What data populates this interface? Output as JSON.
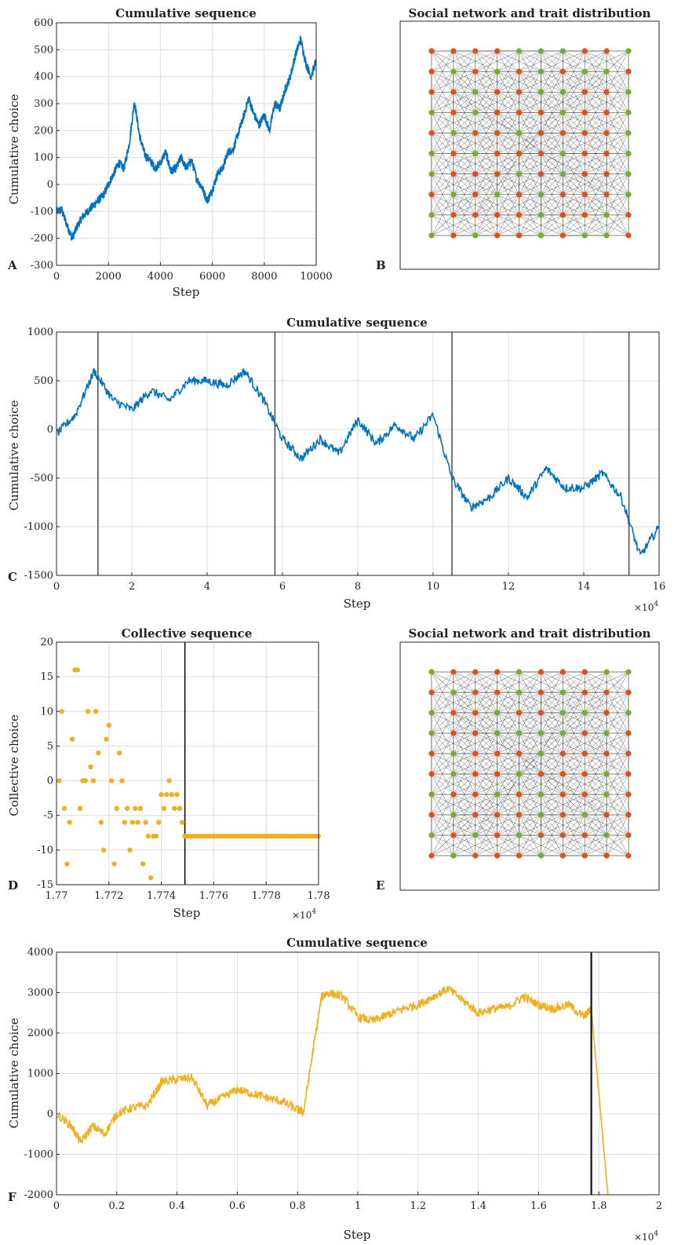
{
  "figure": {
    "panels": {
      "A": {
        "label": "A",
        "title": "Cumulative sequence",
        "xlabel": "Step",
        "ylabel": "Cumulative choice"
      },
      "B": {
        "label": "B",
        "title": "Social network and trait distribution"
      },
      "C": {
        "label": "C",
        "title": "Cumulative sequence",
        "xlabel": "Step",
        "ylabel": "Cumulative choice",
        "exponent": "×10",
        "exponent_power": "4"
      },
      "D": {
        "label": "D",
        "title": "Collective sequence",
        "xlabel": "Step",
        "ylabel": "Collective choice",
        "exponent": "×10",
        "exponent_power": "4"
      },
      "E": {
        "label": "E",
        "title": "Social network and trait distribution"
      },
      "F": {
        "label": "F",
        "title": "Cumulative sequence",
        "xlabel": "Step",
        "ylabel": "Cumulative choice",
        "exponent": "×10",
        "exponent_power": "4"
      }
    }
  },
  "colors": {
    "blue": "#0072BD",
    "yellow": "#EDB120",
    "orange_node": "#D95319",
    "green_node": "#77AC30",
    "vline": "#555555",
    "grid": "#dddddd"
  },
  "chart_data": [
    {
      "panel": "A",
      "type": "line",
      "title": "Cumulative sequence",
      "xlabel": "Step",
      "ylabel": "Cumulative choice",
      "xlim": [
        0,
        10000
      ],
      "ylim": [
        -300,
        600
      ],
      "grid": true,
      "xticks": [
        "0",
        "2000",
        "4000",
        "6000",
        "8000",
        "10000"
      ],
      "yticks": [
        "-300",
        "-200",
        "-100",
        "0",
        "100",
        "200",
        "300",
        "400",
        "500",
        "600"
      ],
      "color": "#0072BD",
      "series": [
        {
          "x": [
            0,
            200,
            400,
            600,
            800,
            1000,
            1200,
            1400,
            1600,
            1800,
            2000,
            2200,
            2400,
            2600,
            2800,
            3000,
            3200,
            3400,
            3600,
            3800,
            4000,
            4200,
            4400,
            4600,
            4800,
            5000,
            5200,
            5400,
            5600,
            5800,
            6000,
            6200,
            6400,
            6600,
            6800,
            7000,
            7200,
            7400,
            7600,
            7800,
            8000,
            8200,
            8400,
            8600,
            8800,
            9000,
            9200,
            9400,
            9600,
            9800,
            10000
          ],
          "y": [
            -100,
            -95,
            -150,
            -200,
            -155,
            -120,
            -100,
            -80,
            -60,
            -40,
            0,
            40,
            80,
            60,
            150,
            310,
            180,
            110,
            90,
            60,
            80,
            120,
            50,
            60,
            100,
            60,
            90,
            20,
            -10,
            -60,
            -20,
            40,
            60,
            120,
            130,
            190,
            250,
            320,
            260,
            220,
            260,
            200,
            300,
            280,
            350,
            400,
            480,
            540,
            450,
            400,
            460
          ]
        }
      ]
    },
    {
      "panel": "B",
      "type": "network",
      "title": "Social network and trait distribution",
      "grid_size": [
        10,
        10
      ],
      "node_traits": [
        "OOOOGGGOOG",
        "OGOGOGOGGO",
        "OOGOOGGOOG",
        "GOGOOOGOOG",
        "OGOOGOOOOG",
        "GOGOOOGOOG",
        "GOOOGOGOOG",
        "OGOGOGOOOG",
        "GOOOOGOOGO",
        "GOGOOGOGGO"
      ]
    },
    {
      "panel": "C",
      "type": "line",
      "title": "Cumulative sequence",
      "xlabel": "Step",
      "ylabel": "Cumulative choice",
      "xlim": [
        0,
        16
      ],
      "ylim": [
        -1500,
        1000
      ],
      "x_multiplier": "×10^4",
      "grid": true,
      "xticks": [
        "0",
        "2",
        "4",
        "6",
        "8",
        "10",
        "12",
        "14",
        "16"
      ],
      "yticks": [
        "-1500",
        "-1000",
        "-500",
        "0",
        "500",
        "1000"
      ],
      "vlines": [
        1.1,
        5.8,
        10.5,
        15.2
      ],
      "color": "#0072BD",
      "series": [
        {
          "x": [
            0,
            0.5,
            1,
            1.5,
            2,
            2.5,
            3,
            3.5,
            4,
            4.5,
            5,
            5.5,
            6,
            6.5,
            7,
            7.5,
            8,
            8.5,
            9,
            9.5,
            10,
            10.5,
            11,
            11.5,
            12,
            12.5,
            13,
            13.5,
            14,
            14.5,
            15,
            15.5,
            16
          ],
          "y": [
            -50,
            150,
            600,
            300,
            200,
            400,
            300,
            500,
            500,
            450,
            600,
            300,
            -100,
            -300,
            -100,
            -250,
            100,
            -150,
            50,
            -100,
            150,
            -500,
            -800,
            -700,
            -500,
            -700,
            -400,
            -600,
            -600,
            -450,
            -700,
            -1300,
            -1000
          ]
        }
      ]
    },
    {
      "panel": "D",
      "type": "scatter",
      "title": "Collective sequence",
      "xlabel": "Step",
      "ylabel": "Collective choice",
      "xlim": [
        1.77,
        1.78
      ],
      "ylim": [
        -15,
        20
      ],
      "x_multiplier": "×10^4",
      "grid": true,
      "xticks": [
        "1.77",
        "1.772",
        "1.774",
        "1.776",
        "1.778",
        "1.78"
      ],
      "yticks": [
        "-15",
        "-10",
        "-5",
        "0",
        "5",
        "10",
        "15",
        "20"
      ],
      "vlines": [
        1.7749
      ],
      "color": "#EDB120",
      "points_before_line": [
        [
          1.7701,
          0
        ],
        [
          1.7702,
          10
        ],
        [
          1.7703,
          -4
        ],
        [
          1.7704,
          -12
        ],
        [
          1.7705,
          -6
        ],
        [
          1.7706,
          6
        ],
        [
          1.7707,
          16
        ],
        [
          1.7708,
          16
        ],
        [
          1.7709,
          -4
        ],
        [
          1.771,
          0
        ],
        [
          1.7711,
          0
        ],
        [
          1.7712,
          10
        ],
        [
          1.7713,
          2
        ],
        [
          1.7714,
          0
        ],
        [
          1.7715,
          10
        ],
        [
          1.7716,
          4
        ],
        [
          1.7717,
          -6
        ],
        [
          1.7718,
          -10
        ],
        [
          1.7719,
          6
        ],
        [
          1.772,
          8
        ],
        [
          1.7721,
          0
        ],
        [
          1.7722,
          -12
        ],
        [
          1.7723,
          -4
        ],
        [
          1.7724,
          4
        ],
        [
          1.7725,
          0
        ],
        [
          1.7726,
          -6
        ],
        [
          1.7727,
          -4
        ],
        [
          1.7728,
          -10
        ],
        [
          1.7729,
          -6
        ],
        [
          1.773,
          -4
        ],
        [
          1.7731,
          -6
        ],
        [
          1.7732,
          -4
        ],
        [
          1.7733,
          -12
        ],
        [
          1.7734,
          -6
        ],
        [
          1.7735,
          -8
        ],
        [
          1.7736,
          -14
        ],
        [
          1.7737,
          -8
        ],
        [
          1.7738,
          -8
        ],
        [
          1.7739,
          -6
        ],
        [
          1.774,
          -2
        ],
        [
          1.7741,
          -4
        ],
        [
          1.7742,
          -2
        ],
        [
          1.7743,
          0
        ],
        [
          1.7744,
          -2
        ],
        [
          1.7745,
          -4
        ],
        [
          1.7746,
          -2
        ],
        [
          1.7747,
          -4
        ],
        [
          1.7748,
          -6
        ]
      ],
      "steady_value": -8,
      "steady_from": 1.7749,
      "steady_to": 1.78
    },
    {
      "panel": "E",
      "type": "network",
      "title": "Social network and trait distribution",
      "grid_size": [
        10,
        10
      ],
      "node_traits": [
        "GOOOGOOOGG",
        "OGOOGOGOOO",
        "GOOGOOGGOG",
        "GOOGGGGOGO",
        "OGOOOGOOOO",
        "OGOOGOOOGO",
        "GOOGOGOOGO",
        "OGOOOGOGOO",
        "GOGOGOOOGO",
        "OGOOOGOOOO"
      ]
    },
    {
      "panel": "F",
      "type": "line",
      "title": "Cumulative sequence",
      "xlabel": "Step",
      "ylabel": "Cumulative choice",
      "xlim": [
        0,
        2
      ],
      "ylim": [
        -2000,
        4000
      ],
      "x_multiplier": "×10^4",
      "grid": true,
      "xticks": [
        "0",
        "0.2",
        "0.4",
        "0.6",
        "0.8",
        "1",
        "1.2",
        "1.4",
        "1.6",
        "1.8",
        "2"
      ],
      "yticks": [
        "-2000",
        "-1000",
        "0",
        "1000",
        "2000",
        "3000",
        "4000"
      ],
      "vlines": [
        1.775
      ],
      "color": "#EDB120",
      "series": [
        {
          "x": [
            0,
            0.05,
            0.08,
            0.12,
            0.16,
            0.2,
            0.25,
            0.3,
            0.35,
            0.4,
            0.45,
            0.5,
            0.55,
            0.6,
            0.65,
            0.7,
            0.75,
            0.8,
            0.82,
            0.85,
            0.88,
            0.9,
            0.95,
            1.0,
            1.05,
            1.1,
            1.15,
            1.2,
            1.25,
            1.3,
            1.35,
            1.4,
            1.45,
            1.5,
            1.55,
            1.6,
            1.65,
            1.7,
            1.75,
            1.775,
            1.83
          ],
          "y": [
            0,
            -300,
            -700,
            -300,
            -500,
            0,
            150,
            200,
            800,
            850,
            900,
            200,
            400,
            600,
            500,
            400,
            300,
            100,
            50,
            1500,
            2900,
            3000,
            2900,
            2400,
            2300,
            2450,
            2600,
            2700,
            2900,
            3100,
            2800,
            2500,
            2600,
            2650,
            2900,
            2700,
            2600,
            2700,
            2400,
            2600,
            -2000
          ]
        }
      ]
    }
  ]
}
